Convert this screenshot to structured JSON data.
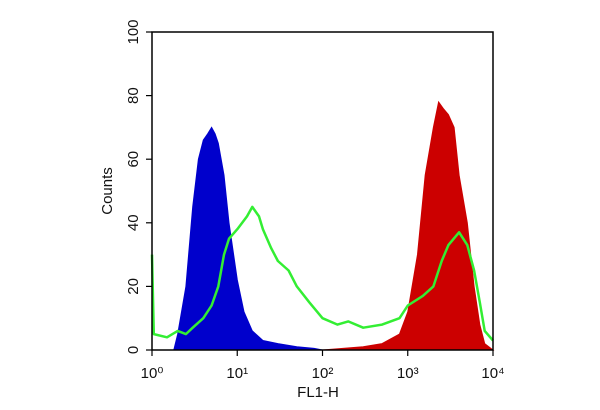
{
  "chart_data": {
    "type": "line",
    "x_label": "FL1-H",
    "y_label": "Counts",
    "xscale": "log",
    "xlim": [
      1,
      10000
    ],
    "xticks": [
      {
        "value": 1,
        "label": "10⁰"
      },
      {
        "value": 10,
        "label": "10¹"
      },
      {
        "value": 100,
        "label": "10²"
      },
      {
        "value": 1000,
        "label": "10³"
      },
      {
        "value": 10000,
        "label": "10⁴"
      }
    ],
    "ylim": [
      0,
      100
    ],
    "yticks": [
      0,
      20,
      40,
      60,
      80,
      100
    ],
    "series": [
      {
        "color": "#0000cc",
        "filled": true,
        "x": [
          1.8,
          2,
          2.5,
          3,
          3.5,
          4,
          4.5,
          5,
          5.5,
          6,
          7,
          8,
          10,
          12,
          15,
          20,
          30,
          50,
          80,
          100
        ],
        "values": [
          0,
          5,
          20,
          45,
          60,
          66,
          68,
          70,
          68,
          65,
          55,
          40,
          22,
          12,
          6,
          3,
          2,
          1,
          0.5,
          0
        ]
      },
      {
        "color": "#cc0000",
        "filled": true,
        "x": [
          100,
          300,
          500,
          800,
          1000,
          1300,
          1600,
          2000,
          2300,
          2600,
          3000,
          3500,
          4000,
          5000,
          6000,
          7000,
          8000,
          10000
        ],
        "values": [
          0,
          1,
          2,
          5,
          12,
          30,
          55,
          70,
          78,
          76,
          74,
          70,
          55,
          40,
          20,
          8,
          2,
          0
        ]
      },
      {
        "color": "#33ee33",
        "filled": false,
        "x": [
          1,
          1.05,
          1.5,
          2,
          2.5,
          3,
          4,
          5,
          6,
          7,
          8,
          10,
          13,
          15,
          18,
          20,
          25,
          30,
          40,
          50,
          70,
          100,
          150,
          200,
          300,
          500,
          800,
          1000,
          1500,
          2000,
          2500,
          3000,
          4000,
          5000,
          6000,
          7000,
          8000,
          10000
        ],
        "values": [
          30,
          5,
          4,
          6,
          5,
          7,
          10,
          14,
          20,
          30,
          35,
          38,
          42,
          45,
          42,
          38,
          32,
          28,
          25,
          20,
          15,
          10,
          8,
          9,
          7,
          8,
          10,
          14,
          17,
          20,
          28,
          33,
          37,
          33,
          25,
          15,
          6,
          3
        ]
      }
    ]
  }
}
